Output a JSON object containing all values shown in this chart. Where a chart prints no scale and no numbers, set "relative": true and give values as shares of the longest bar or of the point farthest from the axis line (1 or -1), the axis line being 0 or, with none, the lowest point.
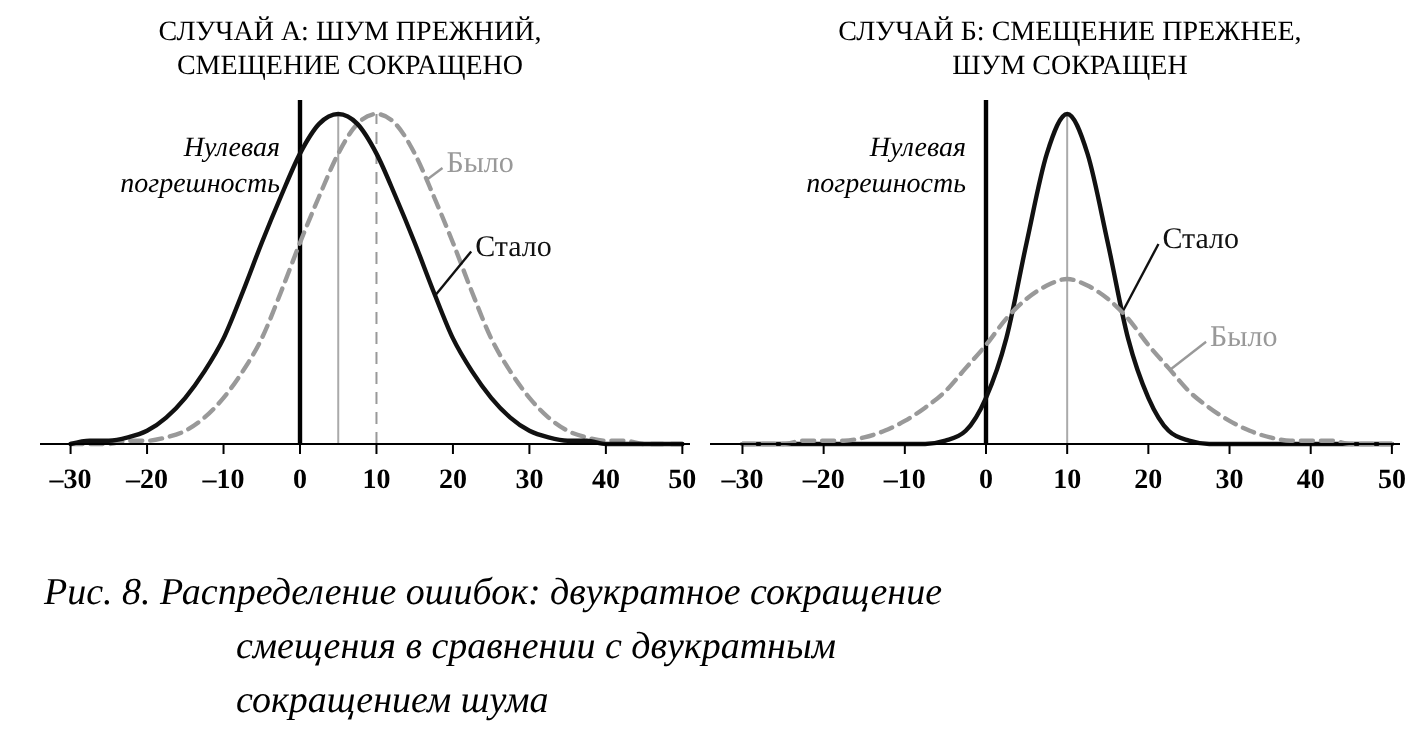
{
  "chart_data": [
    {
      "type": "line",
      "title": "СЛУЧАЙ А: ШУМ ПРЕЖНИЙ,\nСМЕЩЕНИЕ СОКРАЩЕНО",
      "relative": true,
      "tick_labels": "x",
      "marker": "none",
      "x": [
        -30,
        -27.5,
        -25,
        -22.5,
        -20,
        -17.5,
        -15,
        -12.5,
        -10,
        -7.5,
        -5,
        -2.5,
        0,
        2.5,
        5,
        7.5,
        10,
        12.5,
        15,
        17.5,
        20,
        22.5,
        25,
        27.5,
        30,
        32.5,
        35,
        37.5,
        40,
        42.5,
        45,
        47.5,
        50
      ],
      "xlim": [
        -34,
        51
      ],
      "xticks": [
        {
          "value": -30,
          "label": "–30"
        },
        {
          "value": -20,
          "label": "–20"
        },
        {
          "value": -10,
          "label": "–10"
        },
        0,
        10,
        20,
        30,
        40,
        50
      ],
      "series": [
        {
          "name": "Было",
          "color": "#999999",
          "line_style": "dashed",
          "values": [
            0,
            0,
            0,
            0.01,
            0.01,
            0.02,
            0.04,
            0.08,
            0.14,
            0.22,
            0.32,
            0.46,
            0.61,
            0.75,
            0.88,
            0.97,
            1,
            0.97,
            0.88,
            0.75,
            0.61,
            0.46,
            0.32,
            0.22,
            0.14,
            0.08,
            0.04,
            0.02,
            0.01,
            0.01,
            0,
            0,
            0
          ]
        },
        {
          "name": "Стало",
          "color": "#111111",
          "line_style": "solid",
          "values": [
            0,
            0.01,
            0.01,
            0.02,
            0.04,
            0.08,
            0.14,
            0.22,
            0.32,
            0.46,
            0.61,
            0.75,
            0.88,
            0.97,
            1,
            0.97,
            0.88,
            0.75,
            0.61,
            0.46,
            0.32,
            0.22,
            0.14,
            0.08,
            0.04,
            0.02,
            0.01,
            0.01,
            0,
            0,
            0,
            0,
            0
          ]
        }
      ],
      "ref_lines": [
        {
          "axis": "x",
          "value": 0,
          "label": "Нулевая\nпогрешность",
          "color": "#000000",
          "line_style": "solid"
        },
        {
          "axis": "x",
          "value": 5,
          "label": null,
          "color": "#aaaaaa",
          "line_style": "solid"
        },
        {
          "axis": "x",
          "value": 10,
          "label": null,
          "color": "#999999",
          "line_style": "dashed"
        }
      ]
    },
    {
      "type": "line",
      "title": "СЛУЧАЙ Б: СМЕЩЕНИЕ ПРЕЖНЕЕ,\nШУМ СОКРАЩЕН",
      "relative": true,
      "tick_labels": "x",
      "marker": "none",
      "x": [
        -30,
        -27.5,
        -25,
        -22.5,
        -20,
        -17.5,
        -15,
        -12.5,
        -10,
        -7.5,
        -5,
        -2.5,
        0,
        2.5,
        5,
        7.5,
        10,
        12.5,
        15,
        17.5,
        20,
        22.5,
        25,
        27.5,
        30,
        32.5,
        35,
        37.5,
        40,
        42.5,
        45,
        47.5,
        50
      ],
      "xlim": [
        -34,
        51
      ],
      "xticks": [
        {
          "value": -30,
          "label": "–30"
        },
        {
          "value": -20,
          "label": "–20"
        },
        {
          "value": -10,
          "label": "–10"
        },
        0,
        10,
        20,
        30,
        40,
        50
      ],
      "series": [
        {
          "name": "Стало",
          "color": "#111111",
          "line_style": "solid",
          "values": [
            0,
            0,
            0,
            0,
            0,
            0,
            0,
            0,
            0,
            0,
            0.01,
            0.04,
            0.14,
            0.32,
            0.61,
            0.88,
            1,
            0.88,
            0.61,
            0.32,
            0.14,
            0.04,
            0.01,
            0,
            0,
            0,
            0,
            0,
            0,
            0,
            0,
            0,
            0
          ]
        },
        {
          "name": "Было",
          "color": "#999999",
          "line_style": "dashed",
          "values": [
            0,
            0,
            0,
            0.01,
            0.01,
            0.01,
            0.02,
            0.04,
            0.07,
            0.11,
            0.16,
            0.23,
            0.3,
            0.38,
            0.44,
            0.48,
            0.5,
            0.48,
            0.44,
            0.38,
            0.3,
            0.23,
            0.16,
            0.11,
            0.07,
            0.04,
            0.02,
            0.01,
            0.01,
            0.01,
            0,
            0,
            0
          ]
        }
      ],
      "ref_lines": [
        {
          "axis": "x",
          "value": 0,
          "label": "Нулевая\nпогрешность",
          "color": "#000000",
          "line_style": "solid"
        },
        {
          "axis": "x",
          "value": 10,
          "label": null,
          "color": "#aaaaaa",
          "line_style": "solid"
        }
      ],
      "annotations": [
        "Рис. 8. Распределение ошибок: двукратное сокращение\nсмещения в сравнении с двукратным\nсокращением шума"
      ]
    }
  ]
}
